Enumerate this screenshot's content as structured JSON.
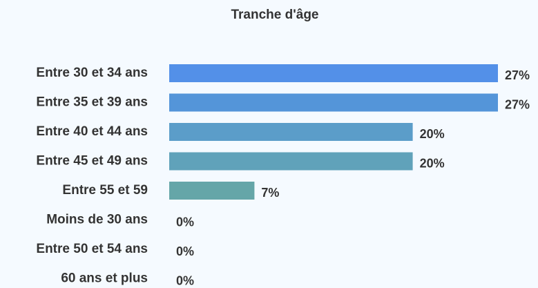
{
  "chart_data": {
    "type": "bar",
    "orientation": "horizontal",
    "title": "Tranche d'âge",
    "categories": [
      "Entre 30 et 34 ans",
      "Entre 35 et 39 ans",
      "Entre 40 et 44 ans",
      "Entre 45 et 49 ans",
      "Entre 55 et 59",
      "Moins de 30 ans",
      "Entre 50 et 54 ans",
      "60 ans et plus"
    ],
    "values": [
      27,
      27,
      20,
      20,
      7,
      0,
      0,
      0
    ],
    "value_labels": [
      "27%",
      "27%",
      "20%",
      "20%",
      "7%",
      "0%",
      "0%",
      "0%"
    ],
    "colors": [
      "#5390e8",
      "#5495d9",
      "#5b9dc9",
      "#60a2ba",
      "#65a6a8",
      "#67a89e",
      "#69aa96",
      "#6bac8e"
    ]
  }
}
